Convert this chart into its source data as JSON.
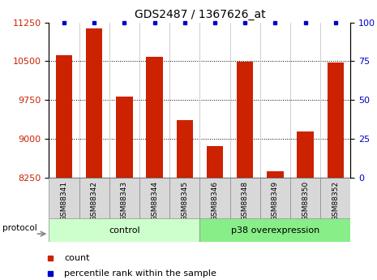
{
  "title": "GDS2487 / 1367626_at",
  "samples": [
    "GSM88341",
    "GSM88342",
    "GSM88343",
    "GSM88344",
    "GSM88345",
    "GSM88346",
    "GSM88348",
    "GSM88349",
    "GSM88350",
    "GSM88352"
  ],
  "counts": [
    10620,
    11130,
    9820,
    10590,
    9370,
    8870,
    10490,
    8380,
    9150,
    10470
  ],
  "percentile_ranks": [
    100,
    100,
    100,
    100,
    100,
    100,
    100,
    100,
    100,
    100
  ],
  "groups": [
    {
      "label": "control",
      "start": 0,
      "end": 5
    },
    {
      "label": "p38 overexpression",
      "start": 5,
      "end": 10
    }
  ],
  "ylim_left": [
    8250,
    11250
  ],
  "ylim_right": [
    0,
    100
  ],
  "yticks_left": [
    8250,
    9000,
    9750,
    10500,
    11250
  ],
  "yticks_right": [
    0,
    25,
    50,
    75,
    100
  ],
  "bar_color": "#cc2200",
  "dot_color": "#0000cc",
  "group_colors": [
    "#ccffcc",
    "#88ee88"
  ],
  "bg_color": "#ffffff",
  "title_color": "#000000",
  "left_tick_color": "#cc2200",
  "right_tick_color": "#0000cc",
  "legend_bar_label": "count",
  "legend_dot_label": "percentile rank within the sample",
  "protocol_label": "protocol"
}
